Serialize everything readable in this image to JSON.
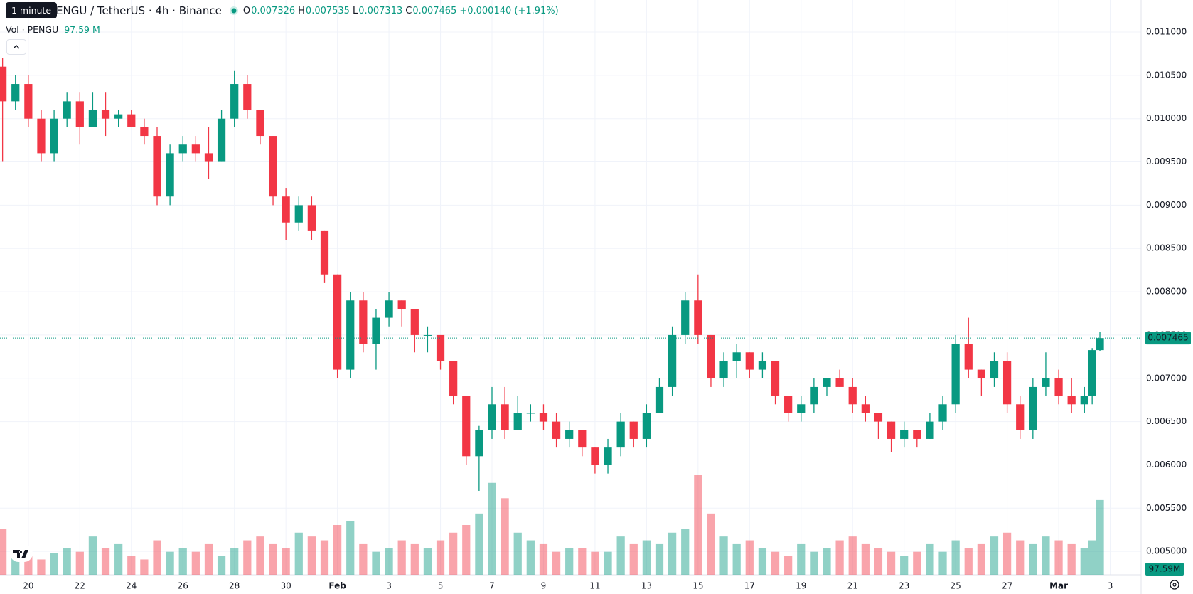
{
  "chart_data": {
    "type": "candlestick",
    "title": "PENGU / TetherUS · 4h · Binance",
    "tooltip": "1 minute",
    "legend_keys": [
      "O",
      "H",
      "L",
      "C"
    ],
    "change_label": "+0.000140 (+1.91%)",
    "volume_title": "Vol · PENGU",
    "volume_labels": {
      "legend": "97.59 M",
      "badge": "97.59M"
    },
    "up_color": "#089981",
    "down_color": "#f23645",
    "grid": true,
    "xlim": [
      -0.1,
      44.2
    ],
    "ylim": [
      0.00473,
      0.01137
    ],
    "xticks": [
      {
        "value": 1,
        "label": "20"
      },
      {
        "value": 3,
        "label": "22"
      },
      {
        "value": 5,
        "label": "24"
      },
      {
        "value": 7,
        "label": "26"
      },
      {
        "value": 9,
        "label": "28"
      },
      {
        "value": 11,
        "label": "30"
      },
      {
        "value": 13,
        "label": "Feb"
      },
      {
        "value": 15,
        "label": "3"
      },
      {
        "value": 17,
        "label": "5"
      },
      {
        "value": 19,
        "label": "7"
      },
      {
        "value": 21,
        "label": "9"
      },
      {
        "value": 23,
        "label": "11"
      },
      {
        "value": 25,
        "label": "13"
      },
      {
        "value": 27,
        "label": "15"
      },
      {
        "value": 29,
        "label": "17"
      },
      {
        "value": 31,
        "label": "19"
      },
      {
        "value": 33,
        "label": "21"
      },
      {
        "value": 35,
        "label": "23"
      },
      {
        "value": 37,
        "label": "25"
      },
      {
        "value": 39,
        "label": "27"
      },
      {
        "value": 41,
        "label": "Mar"
      },
      {
        "value": 43,
        "label": "3"
      }
    ],
    "yticks": [
      {
        "value": 0.005,
        "label": "0.005000"
      },
      {
        "value": 0.0055,
        "label": "0.005500"
      },
      {
        "value": 0.006,
        "label": "0.006000"
      },
      {
        "value": 0.0065,
        "label": "0.006500"
      },
      {
        "value": 0.007,
        "label": "0.007000"
      },
      {
        "value": 0.0075,
        "label": "0.007500"
      },
      {
        "value": 0.008,
        "label": "0.008000"
      },
      {
        "value": 0.0085,
        "label": "0.008500"
      },
      {
        "value": 0.009,
        "label": "0.009000"
      },
      {
        "value": 0.0095,
        "label": "0.009500"
      },
      {
        "value": 0.01,
        "label": "0.010000"
      },
      {
        "value": 0.0105,
        "label": "0.010500"
      },
      {
        "value": 0.011,
        "label": "0.011000"
      }
    ],
    "x": [
      0,
      0.5,
      1,
      1.5,
      2,
      2.5,
      3,
      3.5,
      4,
      4.5,
      5,
      5.5,
      6,
      6.5,
      7,
      7.5,
      8,
      8.5,
      9,
      9.5,
      10,
      10.5,
      11,
      11.5,
      12,
      12.5,
      13,
      13.5,
      14,
      14.5,
      15,
      15.5,
      16,
      16.5,
      17,
      17.5,
      18,
      18.5,
      19,
      19.5,
      20,
      20.5,
      21,
      21.5,
      22,
      22.5,
      23,
      23.5,
      24,
      24.5,
      25,
      25.5,
      26,
      26.5,
      27,
      27.5,
      28,
      28.5,
      29,
      29.5,
      30,
      30.5,
      31,
      31.5,
      32,
      32.5,
      33,
      33.5,
      34,
      34.5,
      35,
      35.5,
      36,
      36.5,
      37,
      37.5,
      38,
      38.5,
      39,
      39.5,
      40,
      40.5,
      41,
      41.5,
      42,
      42.3,
      42.6
    ],
    "ohlc": [
      [
        0.0106,
        0.0107,
        0.0095,
        0.0102
      ],
      [
        0.0102,
        0.0105,
        0.0101,
        0.0104
      ],
      [
        0.0104,
        0.0105,
        0.0099,
        0.01
      ],
      [
        0.01,
        0.0101,
        0.0095,
        0.0096
      ],
      [
        0.0096,
        0.0101,
        0.0095,
        0.01
      ],
      [
        0.01,
        0.0103,
        0.0099,
        0.0102
      ],
      [
        0.0102,
        0.0103,
        0.0097,
        0.0099
      ],
      [
        0.0099,
        0.0103,
        0.0099,
        0.0101
      ],
      [
        0.0101,
        0.0103,
        0.0098,
        0.01
      ],
      [
        0.01,
        0.0101,
        0.0099,
        0.01005
      ],
      [
        0.01005,
        0.0101,
        0.0099,
        0.0099
      ],
      [
        0.0099,
        0.01,
        0.0097,
        0.0098
      ],
      [
        0.0098,
        0.0099,
        0.009,
        0.0091
      ],
      [
        0.0091,
        0.0097,
        0.009,
        0.0096
      ],
      [
        0.0096,
        0.0098,
        0.0095,
        0.0097
      ],
      [
        0.0097,
        0.0098,
        0.0095,
        0.0096
      ],
      [
        0.0096,
        0.0099,
        0.0093,
        0.0095
      ],
      [
        0.0095,
        0.0101,
        0.0095,
        0.01
      ],
      [
        0.01,
        0.01055,
        0.0099,
        0.0104
      ],
      [
        0.0104,
        0.0105,
        0.01,
        0.0101
      ],
      [
        0.0101,
        0.0101,
        0.0097,
        0.0098
      ],
      [
        0.0098,
        0.0098,
        0.009,
        0.0091
      ],
      [
        0.0091,
        0.0092,
        0.0086,
        0.0088
      ],
      [
        0.0088,
        0.0091,
        0.0087,
        0.009
      ],
      [
        0.009,
        0.0091,
        0.0086,
        0.0087
      ],
      [
        0.0087,
        0.0087,
        0.0081,
        0.0082
      ],
      [
        0.0082,
        0.0082,
        0.007,
        0.0071
      ],
      [
        0.0071,
        0.008,
        0.007,
        0.0079
      ],
      [
        0.0079,
        0.008,
        0.0073,
        0.0074
      ],
      [
        0.0074,
        0.0078,
        0.0071,
        0.0077
      ],
      [
        0.0077,
        0.008,
        0.0076,
        0.0079
      ],
      [
        0.0079,
        0.0079,
        0.0076,
        0.0078
      ],
      [
        0.0078,
        0.0078,
        0.0073,
        0.0075
      ],
      [
        0.0075,
        0.0076,
        0.0073,
        0.0075
      ],
      [
        0.0075,
        0.0075,
        0.0071,
        0.0072
      ],
      [
        0.0072,
        0.0072,
        0.0067,
        0.0068
      ],
      [
        0.0068,
        0.0068,
        0.006,
        0.0061
      ],
      [
        0.0061,
        0.00645,
        0.0057,
        0.0064
      ],
      [
        0.0064,
        0.0069,
        0.0063,
        0.0067
      ],
      [
        0.0067,
        0.0069,
        0.0063,
        0.0064
      ],
      [
        0.0064,
        0.0068,
        0.0064,
        0.0066
      ],
      [
        0.0066,
        0.0067,
        0.0065,
        0.0066
      ],
      [
        0.0066,
        0.0067,
        0.0064,
        0.0065
      ],
      [
        0.0065,
        0.0066,
        0.0062,
        0.0063
      ],
      [
        0.0063,
        0.0065,
        0.0062,
        0.0064
      ],
      [
        0.0064,
        0.0064,
        0.0061,
        0.0062
      ],
      [
        0.0062,
        0.0062,
        0.0059,
        0.006
      ],
      [
        0.006,
        0.0063,
        0.0059,
        0.0062
      ],
      [
        0.0062,
        0.0066,
        0.0061,
        0.0065
      ],
      [
        0.0065,
        0.0065,
        0.0062,
        0.0063
      ],
      [
        0.0063,
        0.0067,
        0.0062,
        0.0066
      ],
      [
        0.0066,
        0.007,
        0.0066,
        0.0069
      ],
      [
        0.0069,
        0.0076,
        0.0068,
        0.0075
      ],
      [
        0.0075,
        0.008,
        0.0074,
        0.0079
      ],
      [
        0.0079,
        0.0082,
        0.0074,
        0.0075
      ],
      [
        0.0075,
        0.0075,
        0.0069,
        0.007
      ],
      [
        0.007,
        0.0073,
        0.0069,
        0.0072
      ],
      [
        0.0072,
        0.0074,
        0.007,
        0.0073
      ],
      [
        0.0073,
        0.0073,
        0.007,
        0.0071
      ],
      [
        0.0071,
        0.0073,
        0.007,
        0.0072
      ],
      [
        0.0072,
        0.0072,
        0.0067,
        0.0068
      ],
      [
        0.0068,
        0.0068,
        0.0065,
        0.0066
      ],
      [
        0.0066,
        0.0068,
        0.0065,
        0.0067
      ],
      [
        0.0067,
        0.007,
        0.0066,
        0.0069
      ],
      [
        0.0069,
        0.007,
        0.0068,
        0.007
      ],
      [
        0.007,
        0.0071,
        0.0069,
        0.0069
      ],
      [
        0.0069,
        0.007,
        0.0066,
        0.0067
      ],
      [
        0.0067,
        0.0068,
        0.0065,
        0.0066
      ],
      [
        0.0066,
        0.0066,
        0.0063,
        0.0065
      ],
      [
        0.0065,
        0.0065,
        0.00615,
        0.0063
      ],
      [
        0.0063,
        0.0065,
        0.0062,
        0.0064
      ],
      [
        0.0064,
        0.0064,
        0.0062,
        0.0063
      ],
      [
        0.0063,
        0.0066,
        0.0063,
        0.0065
      ],
      [
        0.0065,
        0.0068,
        0.0064,
        0.0067
      ],
      [
        0.0067,
        0.0075,
        0.0066,
        0.0074
      ],
      [
        0.0074,
        0.0077,
        0.007,
        0.0071
      ],
      [
        0.0071,
        0.0071,
        0.0068,
        0.007
      ],
      [
        0.007,
        0.0073,
        0.0069,
        0.0072
      ],
      [
        0.0072,
        0.0073,
        0.0066,
        0.0067
      ],
      [
        0.0067,
        0.0068,
        0.0063,
        0.0064
      ],
      [
        0.0064,
        0.007,
        0.0063,
        0.0069
      ],
      [
        0.0069,
        0.0073,
        0.0068,
        0.007
      ],
      [
        0.007,
        0.0071,
        0.0067,
        0.0068
      ],
      [
        0.0068,
        0.007,
        0.0066,
        0.0067
      ],
      [
        0.0067,
        0.0069,
        0.0066,
        0.0068
      ],
      [
        0.0068,
        0.00735,
        0.0067,
        0.007326
      ],
      [
        0.007326,
        0.007535,
        0.007313,
        0.007465
      ]
    ],
    "volume": [
      60,
      30,
      25,
      20,
      28,
      35,
      30,
      50,
      35,
      40,
      25,
      20,
      45,
      30,
      35,
      30,
      40,
      25,
      35,
      45,
      50,
      40,
      35,
      55,
      50,
      45,
      65,
      70,
      40,
      30,
      35,
      45,
      40,
      35,
      45,
      55,
      65,
      80,
      120,
      100,
      55,
      45,
      40,
      30,
      35,
      35,
      30,
      30,
      50,
      40,
      45,
      40,
      55,
      60,
      130,
      80,
      50,
      40,
      45,
      35,
      30,
      25,
      40,
      30,
      35,
      45,
      50,
      40,
      35,
      30,
      25,
      30,
      40,
      30,
      45,
      35,
      40,
      50,
      55,
      45,
      40,
      50,
      45,
      40,
      35,
      45,
      97.59
    ]
  }
}
